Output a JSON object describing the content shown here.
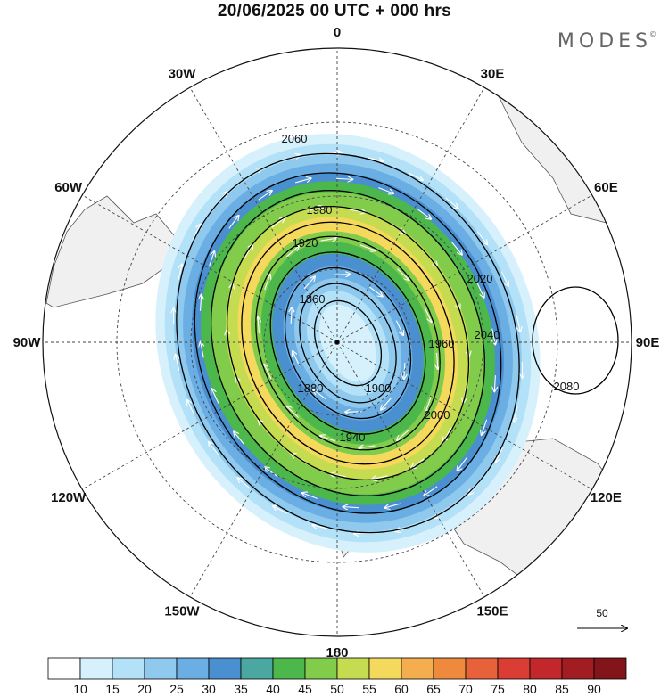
{
  "title": "20/06/2025  00 UTC  + 000 hrs",
  "brand": "MODES",
  "brand_mark": "©",
  "colors": {
    "land": "#f0f0f0",
    "coast": "#555555",
    "contour": "#000000",
    "vector": "#ffffff",
    "grid": "#444444"
  },
  "longitude_labels": [
    {
      "text": "0",
      "deg": 0
    },
    {
      "text": "30E",
      "deg": 30
    },
    {
      "text": "60E",
      "deg": 60
    },
    {
      "text": "90E",
      "deg": 90
    },
    {
      "text": "120E",
      "deg": 120
    },
    {
      "text": "150E",
      "deg": 150
    },
    {
      "text": "180",
      "deg": 180
    },
    {
      "text": "150W",
      "deg": 210
    },
    {
      "text": "120W",
      "deg": 240
    },
    {
      "text": "90W",
      "deg": 270
    },
    {
      "text": "60W",
      "deg": 300
    },
    {
      "text": "30W",
      "deg": 330
    }
  ],
  "contour_levels": [
    "1860",
    "1880",
    "1900",
    "1920",
    "1940",
    "1960",
    "1980",
    "2000",
    "2020",
    "2040",
    "2060",
    "2080"
  ],
  "colorbar": {
    "ticks": [
      "10",
      "15",
      "20",
      "25",
      "30",
      "35",
      "40",
      "45",
      "50",
      "55",
      "60",
      "65",
      "70",
      "75",
      "80",
      "85",
      "90"
    ],
    "colors": [
      "#ffffff",
      "#d6f0fc",
      "#b3e1f7",
      "#8fc9ee",
      "#6aaee3",
      "#4a8fd0",
      "#4aa8a0",
      "#4cb84c",
      "#82cc4c",
      "#c6dc50",
      "#f4d95c",
      "#f4ae4e",
      "#ef8a3c",
      "#e7613a",
      "#d93d33",
      "#c2272c",
      "#a11d22",
      "#82151a"
    ]
  },
  "reference_vector": "50"
}
